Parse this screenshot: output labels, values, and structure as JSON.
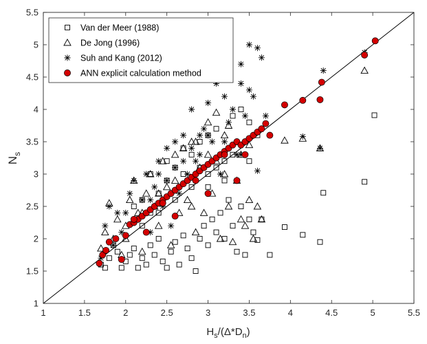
{
  "chart_data": {
    "type": "scatter",
    "title": "",
    "xlabel": {
      "base": "H",
      "sub1": "s",
      "middle": "/(Δ*D",
      "sub2": "n",
      "end": ")"
    },
    "ylabel": {
      "base": "N",
      "sub": "s"
    },
    "xlim": [
      1,
      5.5
    ],
    "ylim": [
      1,
      5.5
    ],
    "xticks": [
      "1",
      "1.5",
      "2",
      "2.5",
      "3",
      "3.5",
      "4",
      "4.5",
      "5",
      "5.5"
    ],
    "yticks": [
      "1",
      "1.5",
      "2",
      "2.5",
      "3",
      "3.5",
      "4",
      "4.5",
      "5",
      "5.5"
    ],
    "grid": false,
    "legend_position": "top-left",
    "reference_line": {
      "from": [
        1,
        1
      ],
      "to": [
        5.5,
        5.5
      ],
      "color": "#000000"
    },
    "series": [
      {
        "name": "Van der Meer (1988)",
        "marker": "square",
        "color": "#000000",
        "points": [
          [
            1.7,
            1.6
          ],
          [
            1.75,
            1.55
          ],
          [
            1.8,
            1.7
          ],
          [
            1.85,
            1.9
          ],
          [
            1.9,
            1.8
          ],
          [
            1.95,
            1.55
          ],
          [
            2.0,
            1.65
          ],
          [
            2.05,
            1.75
          ],
          [
            2.1,
            1.85
          ],
          [
            2.15,
            1.55
          ],
          [
            2.2,
            1.7
          ],
          [
            2.25,
            1.6
          ],
          [
            2.3,
            1.9
          ],
          [
            2.35,
            1.75
          ],
          [
            2.4,
            2.0
          ],
          [
            2.45,
            1.65
          ],
          [
            2.5,
            1.55
          ],
          [
            2.55,
            1.8
          ],
          [
            2.6,
            1.95
          ],
          [
            2.65,
            1.6
          ],
          [
            2.7,
            2.05
          ],
          [
            2.75,
            1.85
          ],
          [
            2.8,
            1.7
          ],
          [
            2.85,
            1.5
          ],
          [
            2.9,
            2.0
          ],
          [
            2.95,
            2.2
          ],
          [
            3.0,
            1.9
          ],
          [
            3.05,
            2.3
          ],
          [
            3.1,
            2.1
          ],
          [
            3.15,
            2.4
          ],
          [
            3.2,
            2.0
          ],
          [
            3.25,
            2.6
          ],
          [
            3.3,
            2.2
          ],
          [
            3.35,
            1.8
          ],
          [
            3.4,
            2.5
          ],
          [
            3.45,
            1.75
          ],
          [
            3.5,
            2.3
          ],
          [
            3.55,
            2.1
          ],
          [
            3.6,
            1.98
          ],
          [
            3.65,
            2.3
          ],
          [
            3.75,
            1.75
          ],
          [
            3.93,
            2.18
          ],
          [
            4.15,
            2.06
          ],
          [
            4.36,
            1.95
          ],
          [
            4.4,
            2.71
          ],
          [
            4.9,
            2.88
          ],
          [
            5.02,
            3.91
          ],
          [
            2.1,
            2.5
          ],
          [
            2.2,
            2.6
          ],
          [
            2.3,
            2.4
          ],
          [
            2.4,
            2.7
          ],
          [
            2.5,
            2.9
          ],
          [
            2.6,
            3.1
          ],
          [
            2.7,
            3.0
          ],
          [
            2.8,
            3.3
          ],
          [
            2.9,
            3.5
          ],
          [
            3.0,
            3.6
          ],
          [
            3.1,
            3.7
          ],
          [
            3.2,
            3.2
          ],
          [
            3.3,
            3.9
          ],
          [
            3.4,
            4.0
          ],
          [
            3.5,
            3.8
          ],
          [
            3.6,
            3.6
          ],
          [
            2.3,
            3.0
          ],
          [
            2.5,
            3.2
          ],
          [
            2.7,
            3.4
          ],
          [
            2.9,
            3.1
          ],
          [
            3.0,
            2.8
          ],
          [
            3.1,
            3.1
          ],
          [
            3.3,
            3.3
          ],
          [
            3.5,
            3.2
          ],
          [
            2.2,
            2.2
          ],
          [
            2.4,
            2.4
          ],
          [
            2.6,
            2.6
          ],
          [
            2.8,
            2.8
          ],
          [
            3.0,
            3.0
          ],
          [
            3.2,
            2.9
          ]
        ]
      },
      {
        "name": "De Jong (1996)",
        "marker": "triangle",
        "color": "#000000",
        "points": [
          [
            1.7,
            1.85
          ],
          [
            1.75,
            2.1
          ],
          [
            1.8,
            2.55
          ],
          [
            1.85,
            2.0
          ],
          [
            1.9,
            2.3
          ],
          [
            1.95,
            1.75
          ],
          [
            2.0,
            2.2
          ],
          [
            2.05,
            2.6
          ],
          [
            2.1,
            2.9
          ],
          [
            2.15,
            2.4
          ],
          [
            2.2,
            1.8
          ],
          [
            2.25,
            2.7
          ],
          [
            2.3,
            3.0
          ],
          [
            2.35,
            2.5
          ],
          [
            2.4,
            2.2
          ],
          [
            2.45,
            3.2
          ],
          [
            2.5,
            2.8
          ],
          [
            2.55,
            1.9
          ],
          [
            2.6,
            3.3
          ],
          [
            2.65,
            2.4
          ],
          [
            2.7,
            3.4
          ],
          [
            2.75,
            2.6
          ],
          [
            2.8,
            3.5
          ],
          [
            2.85,
            2.1
          ],
          [
            2.9,
            3.1
          ],
          [
            2.95,
            2.4
          ],
          [
            3.0,
            3.8
          ],
          [
            3.05,
            2.7
          ],
          [
            3.1,
            3.2
          ],
          [
            3.15,
            2.0
          ],
          [
            3.2,
            3.6
          ],
          [
            3.25,
            2.5
          ],
          [
            3.3,
            1.95
          ],
          [
            3.35,
            2.9
          ],
          [
            3.4,
            2.3
          ],
          [
            3.45,
            2.2
          ],
          [
            3.5,
            2.6
          ],
          [
            3.55,
            2.0
          ],
          [
            3.6,
            2.5
          ],
          [
            3.65,
            2.3
          ],
          [
            2.85,
            3.5
          ],
          [
            3.1,
            3.95
          ],
          [
            3.25,
            3.75
          ],
          [
            3.93,
            3.52
          ],
          [
            4.15,
            3.55
          ],
          [
            4.36,
            3.4
          ],
          [
            4.9,
            4.6
          ],
          [
            2.0,
            2.0
          ],
          [
            2.2,
            2.4
          ],
          [
            2.4,
            2.7
          ],
          [
            2.6,
            2.9
          ],
          [
            2.8,
            2.5
          ],
          [
            3.0,
            3.3
          ],
          [
            3.2,
            3.0
          ],
          [
            3.4,
            3.3
          ],
          [
            3.5,
            3.45
          ]
        ]
      },
      {
        "name": "Suh and Kang (2012)",
        "marker": "asterisk",
        "color": "#000000",
        "points": [
          [
            1.7,
            1.7
          ],
          [
            1.75,
            2.2
          ],
          [
            1.8,
            2.5
          ],
          [
            1.85,
            1.9
          ],
          [
            1.9,
            2.4
          ],
          [
            1.95,
            2.1
          ],
          [
            2.0,
            2.4
          ],
          [
            2.05,
            2.7
          ],
          [
            2.1,
            2.9
          ],
          [
            2.15,
            2.3
          ],
          [
            2.2,
            2.6
          ],
          [
            2.25,
            3.0
          ],
          [
            2.3,
            2.1
          ],
          [
            2.35,
            2.8
          ],
          [
            2.4,
            3.2
          ],
          [
            2.45,
            2.5
          ],
          [
            2.5,
            3.4
          ],
          [
            2.55,
            2.2
          ],
          [
            2.6,
            3.5
          ],
          [
            2.65,
            2.7
          ],
          [
            2.7,
            3.6
          ],
          [
            2.75,
            3.0
          ],
          [
            2.8,
            4.0
          ],
          [
            2.85,
            3.2
          ],
          [
            2.9,
            3.3
          ],
          [
            2.95,
            3.7
          ],
          [
            3.0,
            4.1
          ],
          [
            3.05,
            3.5
          ],
          [
            3.1,
            4.4
          ],
          [
            3.15,
            3.0
          ],
          [
            3.2,
            4.2
          ],
          [
            3.25,
            3.8
          ],
          [
            3.3,
            4.0
          ],
          [
            3.35,
            3.3
          ],
          [
            3.4,
            4.7
          ],
          [
            3.45,
            3.9
          ],
          [
            3.5,
            5.0
          ],
          [
            3.55,
            4.2
          ],
          [
            3.6,
            4.95
          ],
          [
            3.65,
            4.8
          ],
          [
            3.4,
            4.4
          ],
          [
            3.5,
            4.3
          ],
          [
            3.6,
            3.05
          ],
          [
            3.7,
            3.9
          ],
          [
            4.15,
            3.58
          ],
          [
            4.36,
            3.4
          ],
          [
            4.4,
            4.6
          ],
          [
            4.9,
            4.88
          ],
          [
            2.4,
            3.0
          ],
          [
            2.6,
            3.1
          ],
          [
            2.8,
            3.4
          ],
          [
            3.0,
            3.6
          ],
          [
            3.2,
            3.5
          ],
          [
            3.4,
            3.3
          ],
          [
            2.3,
            2.6
          ],
          [
            2.5,
            2.9
          ],
          [
            2.7,
            3.2
          ],
          [
            2.9,
            3.6
          ]
        ]
      },
      {
        "name": "ANN explicit calculation method",
        "marker": "circle",
        "color": "#d40000",
        "points": [
          [
            1.68,
            1.62
          ],
          [
            1.72,
            1.75
          ],
          [
            1.76,
            1.82
          ],
          [
            1.8,
            1.95
          ],
          [
            1.88,
            2.0
          ],
          [
            1.95,
            1.68
          ],
          [
            2.0,
            2.05
          ],
          [
            2.05,
            2.22
          ],
          [
            2.1,
            2.25
          ],
          [
            2.15,
            2.3
          ],
          [
            2.2,
            2.35
          ],
          [
            2.25,
            2.4
          ],
          [
            2.3,
            2.45
          ],
          [
            2.35,
            2.5
          ],
          [
            2.4,
            2.55
          ],
          [
            2.45,
            2.6
          ],
          [
            2.5,
            2.65
          ],
          [
            2.55,
            2.7
          ],
          [
            2.6,
            2.75
          ],
          [
            2.65,
            2.8
          ],
          [
            2.7,
            2.85
          ],
          [
            2.75,
            2.9
          ],
          [
            2.8,
            2.95
          ],
          [
            2.85,
            3.0
          ],
          [
            2.9,
            3.05
          ],
          [
            2.95,
            3.1
          ],
          [
            3.0,
            3.15
          ],
          [
            3.05,
            3.2
          ],
          [
            3.1,
            3.25
          ],
          [
            3.15,
            3.3
          ],
          [
            3.2,
            3.35
          ],
          [
            3.25,
            3.4
          ],
          [
            3.3,
            3.45
          ],
          [
            3.35,
            3.5
          ],
          [
            3.4,
            3.45
          ],
          [
            3.45,
            3.5
          ],
          [
            3.5,
            3.55
          ],
          [
            3.55,
            3.6
          ],
          [
            3.6,
            3.65
          ],
          [
            3.65,
            3.7
          ],
          [
            3.7,
            3.78
          ],
          [
            3.75,
            3.6
          ],
          [
            3.93,
            4.07
          ],
          [
            4.15,
            4.14
          ],
          [
            4.36,
            4.15
          ],
          [
            4.38,
            4.42
          ],
          [
            4.9,
            4.84
          ],
          [
            5.03,
            5.06
          ],
          [
            2.25,
            2.1
          ],
          [
            2.6,
            2.35
          ],
          [
            3.0,
            2.7
          ],
          [
            3.35,
            2.9
          ],
          [
            2.45,
            2.55
          ],
          [
            2.85,
            2.9
          ],
          [
            3.2,
            3.3
          ],
          [
            2.1,
            2.3
          ],
          [
            3.45,
            3.3
          ]
        ]
      }
    ]
  }
}
